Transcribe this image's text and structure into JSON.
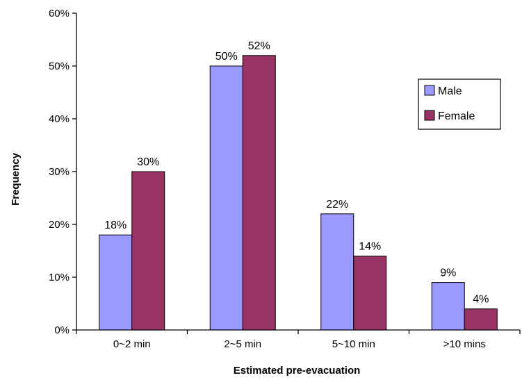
{
  "chart_data": {
    "type": "bar",
    "categories": [
      "0~2 min",
      "2~5 min",
      "5~10 min",
      ">10 mins"
    ],
    "series": [
      {
        "name": "Male",
        "values": [
          18,
          50,
          22,
          9
        ],
        "labels": [
          "18%",
          "50%",
          "22%",
          "9%"
        ],
        "color": "#9999ff"
      },
      {
        "name": "Female",
        "values": [
          30,
          52,
          14,
          4
        ],
        "labels": [
          "30%",
          "52%",
          "14%",
          "4%"
        ],
        "color": "#993366"
      }
    ],
    "xlabel": "Estimated pre-evacuation",
    "ylabel": "Frequency",
    "ylim": [
      0,
      60
    ],
    "yticks": [
      0,
      10,
      20,
      30,
      40,
      50,
      60
    ],
    "ytick_labels": [
      "0%",
      "10%",
      "20%",
      "30%",
      "40%",
      "50%",
      "60%"
    ],
    "legend": {
      "placement": "top-right",
      "entries": [
        "Male",
        "Female"
      ]
    },
    "grid": false
  }
}
